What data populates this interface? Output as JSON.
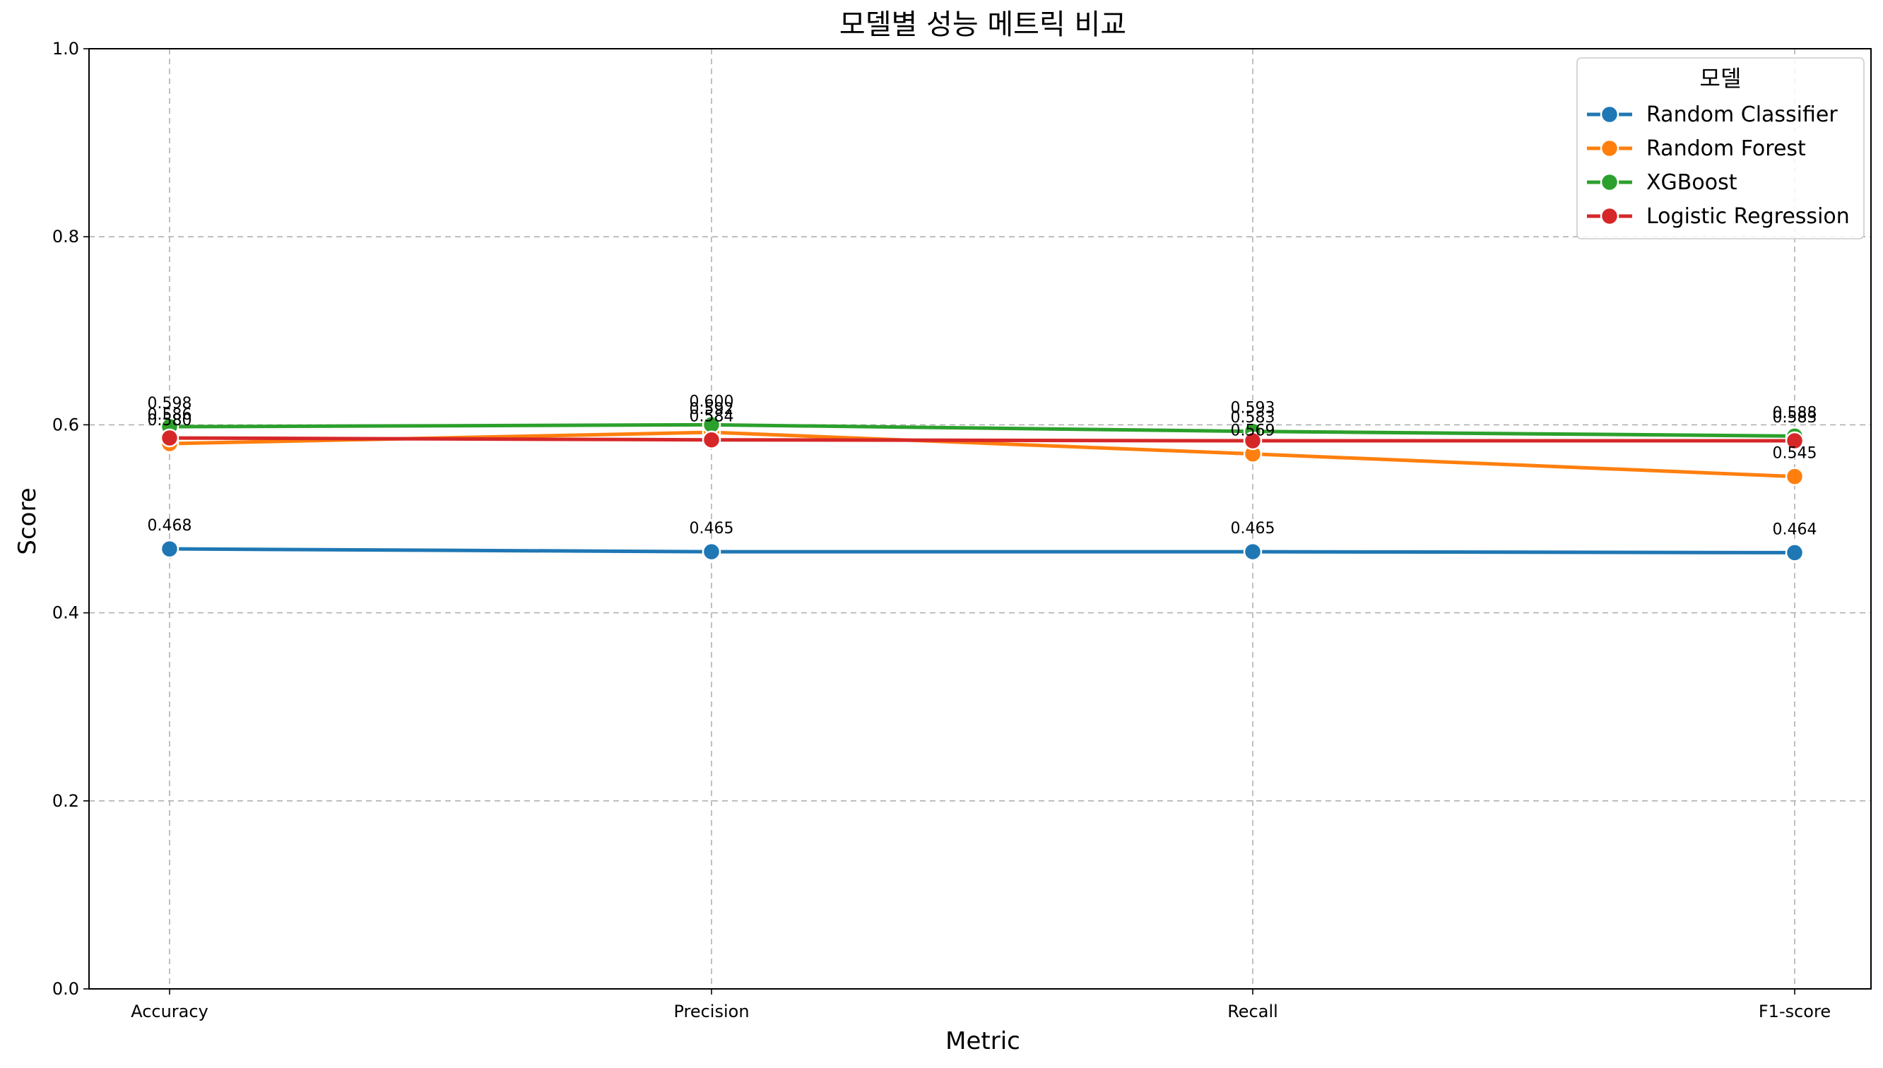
{
  "chart_data": {
    "type": "line",
    "title": "모델별 성능 메트릭 비교",
    "xlabel": "Metric",
    "ylabel": "Score",
    "ylim": [
      0,
      1.0
    ],
    "yticks": [
      "0.0",
      "0.2",
      "0.4",
      "0.6",
      "0.8",
      "1.0"
    ],
    "categories": [
      "Accuracy",
      "Precision",
      "Recall",
      "F1-score"
    ],
    "grid": true,
    "legend": {
      "title": "모델",
      "placement": "top-right"
    },
    "series": [
      {
        "name": "Random Classifier",
        "color": "#1f77b4",
        "values": [
          0.468,
          0.465,
          0.465,
          0.464
        ],
        "labels": [
          "0.468",
          "0.465",
          "0.465",
          "0.464"
        ]
      },
      {
        "name": "Random Forest",
        "color": "#ff7f0e",
        "values": [
          0.58,
          0.592,
          0.569,
          0.545
        ],
        "labels": [
          "0.580",
          "0.592",
          "0.569",
          "0.545"
        ]
      },
      {
        "name": "XGBoost",
        "color": "#2ca02c",
        "values": [
          0.598,
          0.6,
          0.593,
          0.588
        ],
        "labels": [
          "0.598",
          "0.600",
          "0.593",
          "0.588"
        ]
      },
      {
        "name": "Logistic Regression",
        "color": "#d62728",
        "values": [
          0.586,
          0.584,
          0.583,
          0.583
        ],
        "labels": [
          "0.586",
          "0.584",
          "0.583",
          "0.583"
        ]
      }
    ]
  }
}
